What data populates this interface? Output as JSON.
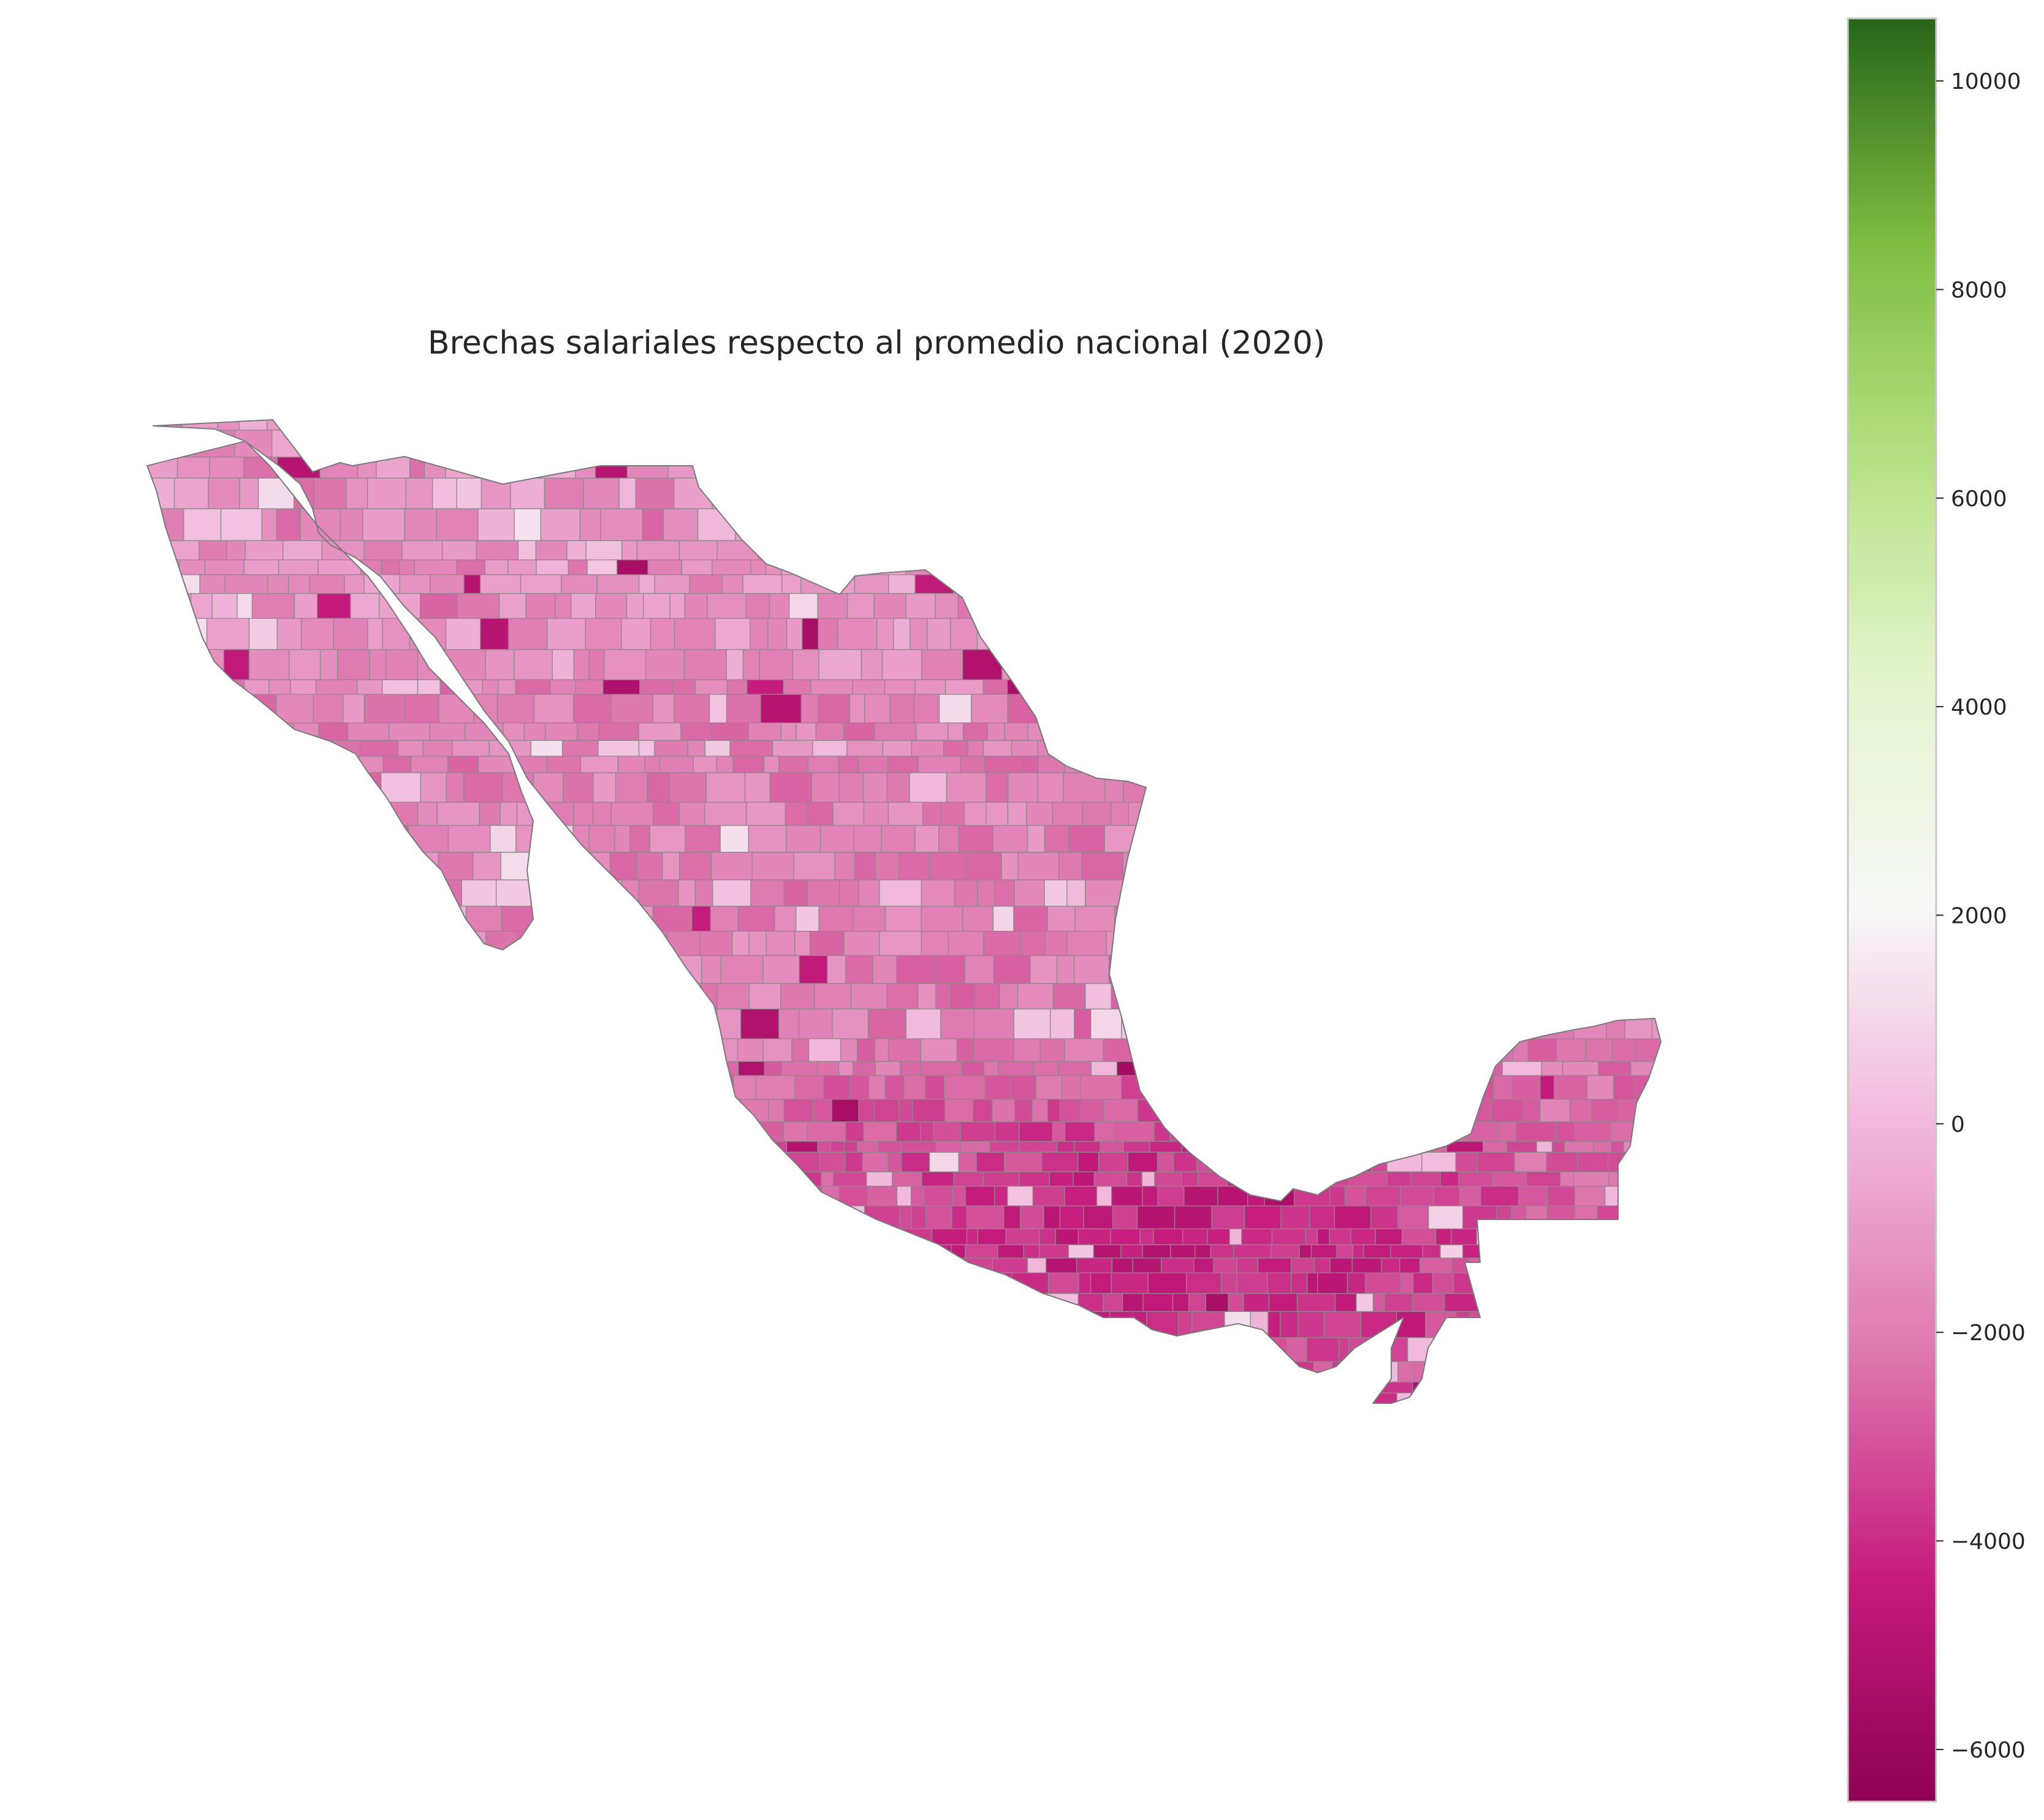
{
  "map": {
    "title": "Brechas salariales respecto al promedio nacional (2020)",
    "region": "Mexico",
    "unit_level": "municipality",
    "colormap": "PiYG",
    "colors": {
      "min": "#8e0152",
      "neg_high": "#c51b7d",
      "neg_mid": "#de77ae",
      "neg_low": "#f1b6da",
      "neutral": "#f7f7f7",
      "pos_low": "#e6f5d0",
      "pos_mid": "#b8e186",
      "pos_high": "#7fbc41",
      "max": "#276419"
    },
    "value_range": [
      -6500,
      10600
    ]
  },
  "colorbar": {
    "ticks": [
      {
        "value": -6000,
        "label": "−6000"
      },
      {
        "value": -4000,
        "label": "−4000"
      },
      {
        "value": -2000,
        "label": "−2000"
      },
      {
        "value": 0,
        "label": "0"
      },
      {
        "value": 2000,
        "label": "2000"
      },
      {
        "value": 4000,
        "label": "4000"
      },
      {
        "value": 6000,
        "label": "6000"
      },
      {
        "value": 8000,
        "label": "8000"
      },
      {
        "value": 10000,
        "label": "10000"
      }
    ]
  }
}
